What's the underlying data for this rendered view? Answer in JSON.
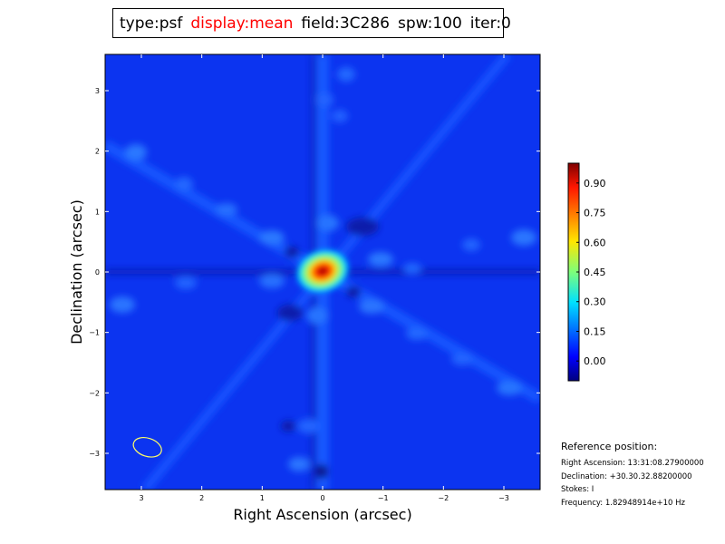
{
  "title_box": {
    "type": "type:psf",
    "display": "display:mean",
    "field": "field:3C286",
    "spw": "spw:100",
    "iter": "iter:0"
  },
  "colors": {
    "display_highlight": "#ff0000",
    "beam_ellipse": "#ffff66"
  },
  "chart_data": {
    "type": "heatmap",
    "title": "",
    "xlabel": "Right Ascension (arcsec)",
    "ylabel": "Declination (arcsec)",
    "xlim": [
      3.6,
      -3.6
    ],
    "ylim": [
      -3.6,
      3.6
    ],
    "x_inverted": true,
    "x_ticks": [
      3,
      2,
      1,
      0,
      -1,
      -2,
      -3
    ],
    "x_tick_labels": [
      "3",
      "2",
      "1",
      "0",
      "−1",
      "−2",
      "−3"
    ],
    "y_ticks": [
      3,
      2,
      1,
      0,
      -1,
      -2,
      -3
    ],
    "y_tick_labels": [
      "3",
      "2",
      "1",
      "0",
      "−1",
      "−2",
      "−3"
    ],
    "colormap": "jet",
    "color_range": [
      -0.1,
      1.0
    ],
    "colorbar_ticks": [
      0.9,
      0.75,
      0.6,
      0.45,
      0.3,
      0.15,
      0.0
    ],
    "colorbar_tick_labels": [
      "0.90",
      "0.75",
      "0.60",
      "0.45",
      "0.30",
      "0.15",
      "0.00"
    ],
    "peak": {
      "x": 0,
      "y": 0,
      "value": 1.0
    },
    "beam": {
      "center_x": 2.9,
      "center_y": -2.9
    }
  },
  "reference": {
    "heading": "Reference position:",
    "ra": "Right Ascension: 13:31:08.27900000",
    "dec": "Declination: +30.30.32.88200000",
    "stokes": "Stokes: I",
    "freq": "Frequency: 1.82948914e+10 Hz"
  }
}
